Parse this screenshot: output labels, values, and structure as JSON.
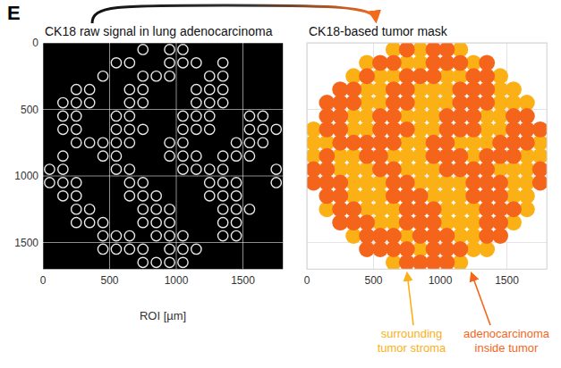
{
  "panel": "E",
  "chart_data": [
    {
      "type": "image",
      "title": "CK18 raw signal in lung adenocarcinoma",
      "xlabel": "ROI [µm]",
      "xlim": [
        0,
        1800
      ],
      "ylim": [
        1700,
        0
      ],
      "xticks": [
        0,
        500,
        1000,
        1500
      ],
      "yticks": [
        0,
        500,
        1000,
        1500
      ],
      "grid": true,
      "tick_labels": true
    },
    {
      "type": "mask",
      "title": "CK18-based tumor mask",
      "xlim": [
        0,
        1800
      ],
      "ylim": [
        1700,
        0
      ],
      "xticks": [
        0,
        500,
        1000,
        1500
      ],
      "yticks": [
        0,
        500,
        1000,
        1500
      ],
      "grid": true,
      "tick_labels": "x",
      "series": [
        {
          "name": "surrounding tumor stroma",
          "color": "#fbb016"
        },
        {
          "name": "adenocarcinoma inside tumor",
          "color": "#f4651b"
        }
      ],
      "cells": [
        [
          null,
          null,
          null,
          null,
          null,
          null,
          0,
          1,
          0,
          1,
          1,
          0,
          null,
          null,
          null,
          null,
          null,
          null
        ],
        [
          null,
          null,
          null,
          null,
          0,
          1,
          1,
          0,
          0,
          1,
          1,
          1,
          0,
          1,
          null,
          null,
          null,
          null
        ],
        [
          null,
          null,
          null,
          0,
          1,
          0,
          0,
          1,
          1,
          1,
          0,
          0,
          1,
          1,
          0,
          null,
          null,
          null
        ],
        [
          null,
          null,
          1,
          1,
          0,
          0,
          1,
          1,
          0,
          0,
          0,
          1,
          1,
          1,
          0,
          0,
          null,
          null
        ],
        [
          null,
          1,
          1,
          1,
          0,
          0,
          1,
          1,
          0,
          0,
          0,
          1,
          1,
          1,
          0,
          0,
          0,
          null
        ],
        [
          null,
          1,
          1,
          0,
          0,
          1,
          1,
          0,
          0,
          0,
          1,
          1,
          1,
          0,
          0,
          1,
          1,
          null
        ],
        [
          0,
          1,
          1,
          0,
          0,
          1,
          1,
          1,
          0,
          0,
          1,
          1,
          1,
          0,
          0,
          1,
          1,
          1
        ],
        [
          0,
          0,
          1,
          1,
          1,
          1,
          1,
          0,
          0,
          1,
          1,
          0,
          0,
          0,
          1,
          1,
          1,
          0
        ],
        [
          0,
          1,
          0,
          0,
          1,
          1,
          0,
          0,
          0,
          1,
          1,
          1,
          0,
          1,
          1,
          1,
          0,
          0
        ],
        [
          1,
          1,
          0,
          0,
          0,
          1,
          1,
          0,
          0,
          0,
          1,
          1,
          1,
          1,
          0,
          0,
          0,
          1
        ],
        [
          1,
          1,
          1,
          0,
          0,
          0,
          1,
          1,
          0,
          0,
          0,
          0,
          1,
          1,
          1,
          0,
          0,
          1
        ],
        [
          null,
          1,
          1,
          0,
          0,
          0,
          1,
          1,
          1,
          0,
          0,
          0,
          1,
          1,
          1,
          0,
          0,
          null
        ],
        [
          null,
          0,
          1,
          1,
          0,
          0,
          0,
          1,
          1,
          1,
          0,
          0,
          0,
          1,
          1,
          1,
          0,
          null
        ],
        [
          null,
          null,
          1,
          1,
          1,
          0,
          0,
          1,
          1,
          1,
          0,
          0,
          0,
          1,
          1,
          0,
          null,
          null
        ],
        [
          null,
          null,
          null,
          0,
          1,
          1,
          1,
          0,
          1,
          1,
          1,
          0,
          0,
          1,
          1,
          null,
          null,
          null
        ],
        [
          null,
          null,
          null,
          null,
          1,
          1,
          1,
          1,
          0,
          1,
          1,
          1,
          0,
          0,
          null,
          null,
          null,
          null
        ],
        [
          null,
          null,
          null,
          null,
          null,
          null,
          0,
          1,
          1,
          1,
          1,
          0,
          null,
          null,
          null,
          null,
          null,
          null
        ]
      ]
    }
  ]
}
